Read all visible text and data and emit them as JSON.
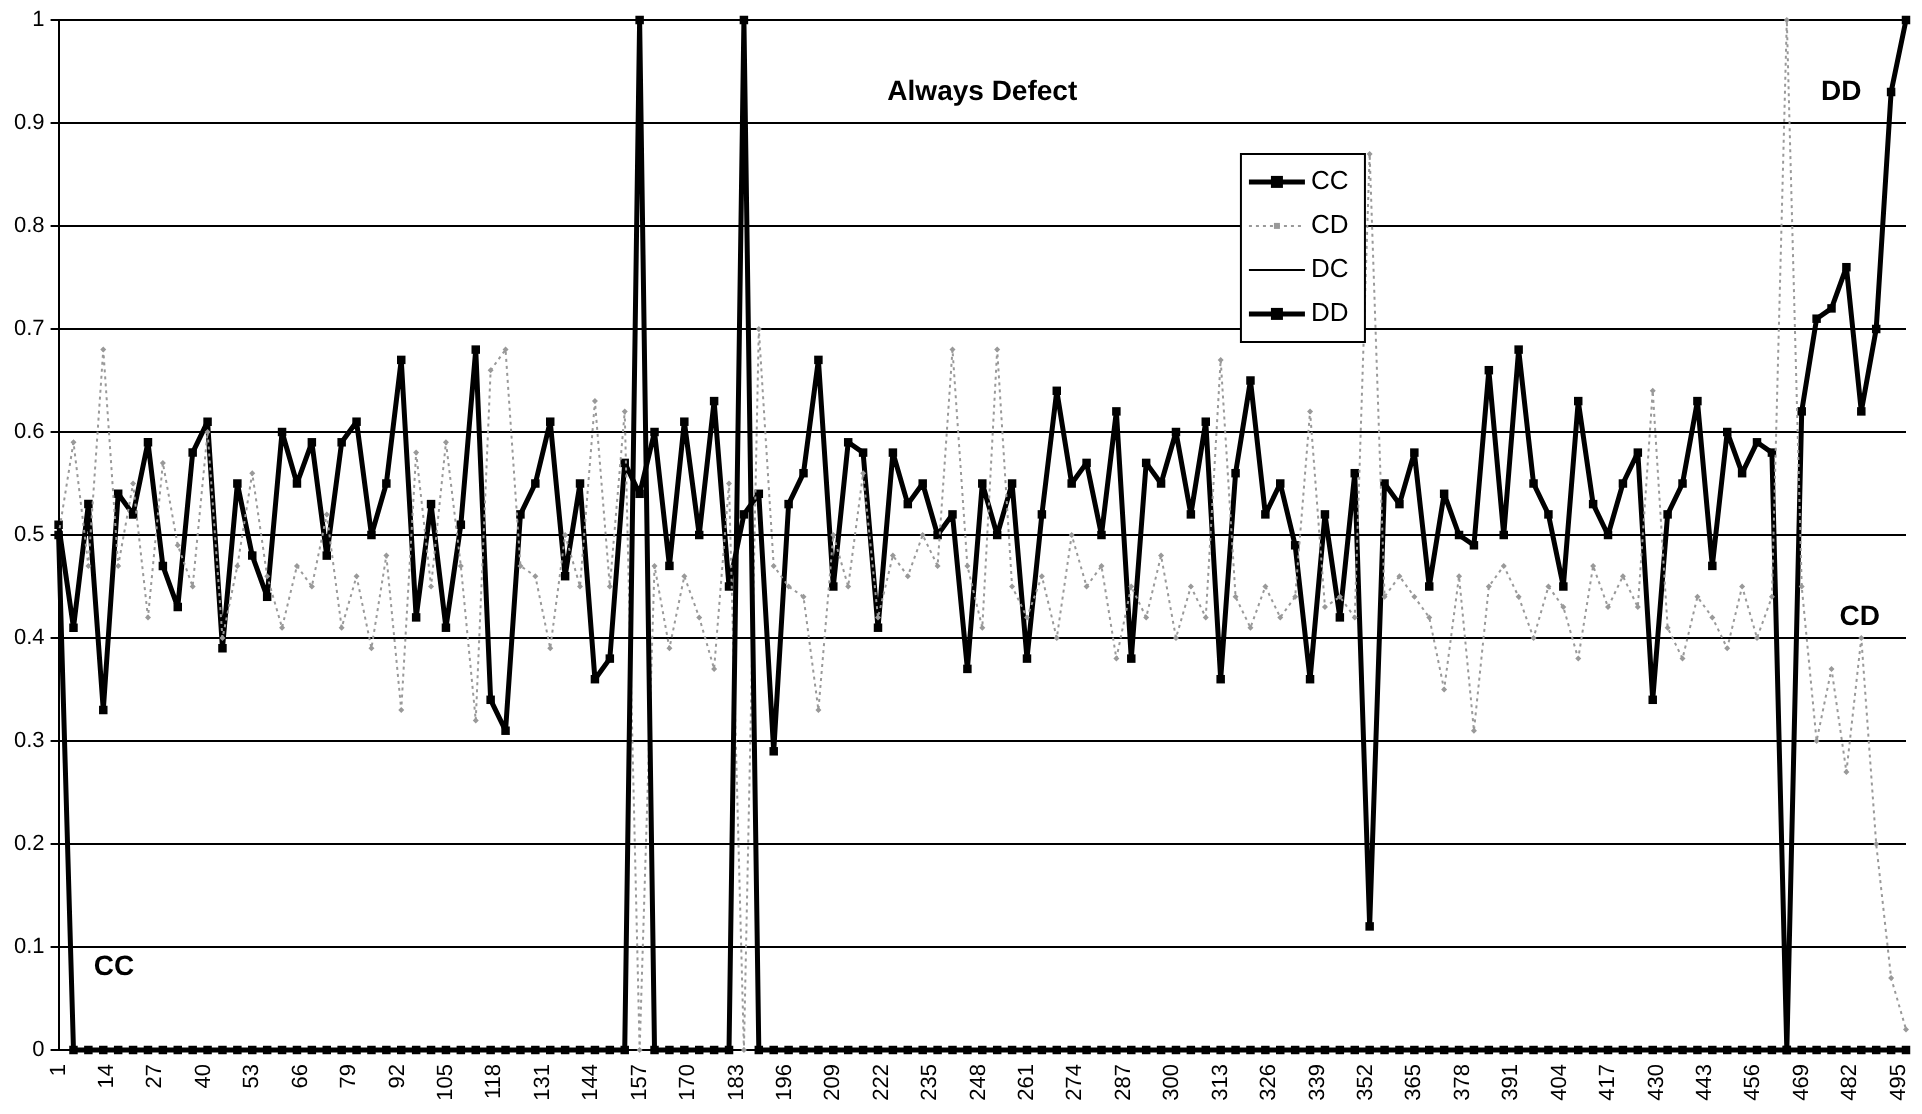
{
  "chart_data": {
    "type": "line",
    "annotations": [
      "Always Defect",
      "DD",
      "CD",
      "CC"
    ],
    "x": [
      1,
      5,
      9,
      13,
      17,
      21,
      25,
      29,
      33,
      37,
      41,
      45,
      49,
      53,
      57,
      61,
      65,
      69,
      73,
      77,
      81,
      85,
      89,
      93,
      97,
      101,
      105,
      109,
      113,
      117,
      121,
      125,
      129,
      133,
      137,
      141,
      145,
      149,
      153,
      157,
      161,
      165,
      169,
      173,
      177,
      181,
      185,
      189,
      193,
      197,
      201,
      205,
      209,
      213,
      217,
      221,
      225,
      229,
      233,
      237,
      241,
      245,
      249,
      253,
      257,
      261,
      265,
      269,
      273,
      277,
      281,
      285,
      289,
      293,
      297,
      301,
      305,
      309,
      313,
      317,
      321,
      325,
      329,
      333,
      337,
      341,
      345,
      349,
      353,
      357,
      361,
      365,
      369,
      373,
      377,
      381,
      385,
      389,
      393,
      397,
      401,
      405,
      409,
      413,
      417,
      421,
      425,
      429,
      433,
      437,
      441,
      445,
      449,
      453,
      457,
      461,
      465,
      469,
      473,
      477,
      481,
      485,
      489,
      493,
      497
    ],
    "series": [
      {
        "name": "CC",
        "color": "#000000",
        "marker": "square",
        "values": [
          0.5,
          0,
          0,
          0,
          0,
          0,
          0,
          0,
          0,
          0,
          0,
          0,
          0,
          0,
          0,
          0,
          0,
          0,
          0,
          0,
          0,
          0,
          0,
          0,
          0,
          0,
          0,
          0,
          0,
          0,
          0,
          0,
          0,
          0,
          0,
          0,
          0,
          0,
          0,
          1,
          0,
          0,
          0,
          0,
          0,
          0,
          1,
          0,
          0,
          0,
          0,
          0,
          0,
          0,
          0,
          0,
          0,
          0,
          0,
          0,
          0,
          0,
          0,
          0,
          0,
          0,
          0,
          0,
          0,
          0,
          0,
          0,
          0,
          0,
          0,
          0,
          0,
          0,
          0,
          0,
          0,
          0,
          0,
          0,
          0,
          0,
          0,
          0,
          0,
          0,
          0,
          0,
          0,
          0,
          0,
          0,
          0,
          0,
          0,
          0,
          0,
          0,
          0,
          0,
          0,
          0,
          0,
          0,
          0,
          0,
          0,
          0,
          0,
          0,
          0,
          0,
          0,
          0,
          0,
          0,
          0,
          0,
          0,
          0,
          0
        ]
      },
      {
        "name": "CD",
        "color": "#999999",
        "marker": "diamond",
        "line_style": "dotted",
        "values": [
          0.5,
          0.59,
          0.47,
          0.68,
          0.47,
          0.55,
          0.42,
          0.57,
          0.49,
          0.45,
          0.6,
          0.4,
          0.47,
          0.56,
          0.46,
          0.41,
          0.47,
          0.45,
          0.52,
          0.41,
          0.46,
          0.39,
          0.48,
          0.33,
          0.58,
          0.45,
          0.59,
          0.47,
          0.32,
          0.66,
          0.68,
          0.47,
          0.46,
          0.39,
          0.5,
          0.45,
          0.63,
          0.45,
          0.62,
          0,
          0.47,
          0.39,
          0.46,
          0.42,
          0.37,
          0.55,
          0,
          0.7,
          0.47,
          0.45,
          0.44,
          0.33,
          0.5,
          0.45,
          0.56,
          0.42,
          0.48,
          0.46,
          0.5,
          0.47,
          0.68,
          0.47,
          0.41,
          0.68,
          0.45,
          0.42,
          0.46,
          0.4,
          0.5,
          0.45,
          0.47,
          0.38,
          0.45,
          0.42,
          0.48,
          0.4,
          0.45,
          0.42,
          0.67,
          0.44,
          0.41,
          0.45,
          0.42,
          0.44,
          0.62,
          0.43,
          0.44,
          0.42,
          0.87,
          0.44,
          0.46,
          0.44,
          0.42,
          0.35,
          0.46,
          0.31,
          0.45,
          0.47,
          0.44,
          0.4,
          0.45,
          0.43,
          0.38,
          0.47,
          0.43,
          0.46,
          0.43,
          0.64,
          0.41,
          0.38,
          0.44,
          0.42,
          0.39,
          0.45,
          0.4,
          0.44,
          1,
          0.45,
          0.3,
          0.37,
          0.27,
          0.4,
          0.2,
          0.07,
          0.02
        ]
      },
      {
        "name": "DC",
        "color": "#000000",
        "marker": "none",
        "values": [
          null,
          null,
          null,
          null,
          null,
          null,
          null,
          null,
          null,
          null,
          null,
          null,
          null,
          null,
          null,
          null,
          null,
          null,
          null,
          null,
          null,
          null,
          null,
          null,
          null,
          null,
          null,
          null,
          null,
          null,
          null,
          null,
          null,
          null,
          null,
          null,
          null,
          null,
          null,
          null,
          null,
          null,
          null,
          null,
          null,
          null,
          null,
          null,
          null,
          null,
          null,
          null,
          null,
          null,
          null,
          null,
          null,
          null,
          null,
          null,
          null,
          null,
          null,
          null,
          null,
          null,
          null,
          null,
          null,
          null,
          null,
          null,
          null,
          null,
          null,
          null,
          null,
          null,
          null,
          null,
          null,
          null,
          null,
          null,
          null,
          null,
          null,
          null,
          null,
          null,
          null,
          null,
          null,
          null,
          null,
          null,
          null,
          null,
          null,
          null,
          null,
          null,
          null,
          null,
          null,
          null,
          null,
          null,
          null,
          null,
          null,
          null,
          null,
          null,
          null,
          null,
          null,
          null,
          null,
          null,
          null,
          null,
          null,
          null,
          null
        ]
      },
      {
        "name": "DD",
        "color": "#000000",
        "marker": "square",
        "values": [
          0.51,
          0.41,
          0.53,
          0.33,
          0.54,
          0.52,
          0.59,
          0.47,
          0.43,
          0.58,
          0.61,
          0.39,
          0.55,
          0.48,
          0.44,
          0.6,
          0.55,
          0.59,
          0.48,
          0.59,
          0.61,
          0.5,
          0.55,
          0.67,
          0.42,
          0.53,
          0.41,
          0.51,
          0.68,
          0.34,
          0.31,
          0.52,
          0.55,
          0.61,
          0.46,
          0.55,
          0.36,
          0.38,
          0.57,
          0.54,
          0.6,
          0.47,
          0.61,
          0.5,
          0.63,
          0.45,
          0.52,
          0.54,
          0.29,
          0.53,
          0.56,
          0.67,
          0.45,
          0.59,
          0.58,
          0.41,
          0.58,
          0.53,
          0.55,
          0.5,
          0.52,
          0.37,
          0.55,
          0.5,
          0.55,
          0.38,
          0.52,
          0.64,
          0.55,
          0.57,
          0.5,
          0.62,
          0.38,
          0.57,
          0.55,
          0.6,
          0.52,
          0.61,
          0.36,
          0.56,
          0.65,
          0.52,
          0.55,
          0.49,
          0.36,
          0.52,
          0.42,
          0.56,
          0.12,
          0.55,
          0.53,
          0.58,
          0.45,
          0.54,
          0.5,
          0.49,
          0.66,
          0.5,
          0.68,
          0.55,
          0.52,
          0.45,
          0.63,
          0.53,
          0.5,
          0.55,
          0.58,
          0.34,
          0.52,
          0.55,
          0.63,
          0.47,
          0.6,
          0.56,
          0.59,
          0.58,
          0,
          0.62,
          0.71,
          0.72,
          0.76,
          0.62,
          0.7,
          0.93,
          1
        ]
      }
    ],
    "xlim": [
      1,
      497
    ],
    "xticks": [
      1,
      14,
      27,
      40,
      53,
      66,
      79,
      92,
      105,
      118,
      131,
      144,
      157,
      170,
      183,
      196,
      209,
      222,
      235,
      248,
      261,
      274,
      287,
      300,
      313,
      326,
      339,
      352,
      365,
      378,
      391,
      404,
      417,
      430,
      443,
      456,
      469,
      482,
      495
    ],
    "ylim": [
      0,
      1
    ],
    "yticks": [
      0,
      0.1,
      0.2,
      0.3,
      0.4,
      0.5,
      0.6,
      0.7,
      0.8,
      0.9,
      1
    ],
    "grid": "y",
    "legend": "top right"
  }
}
